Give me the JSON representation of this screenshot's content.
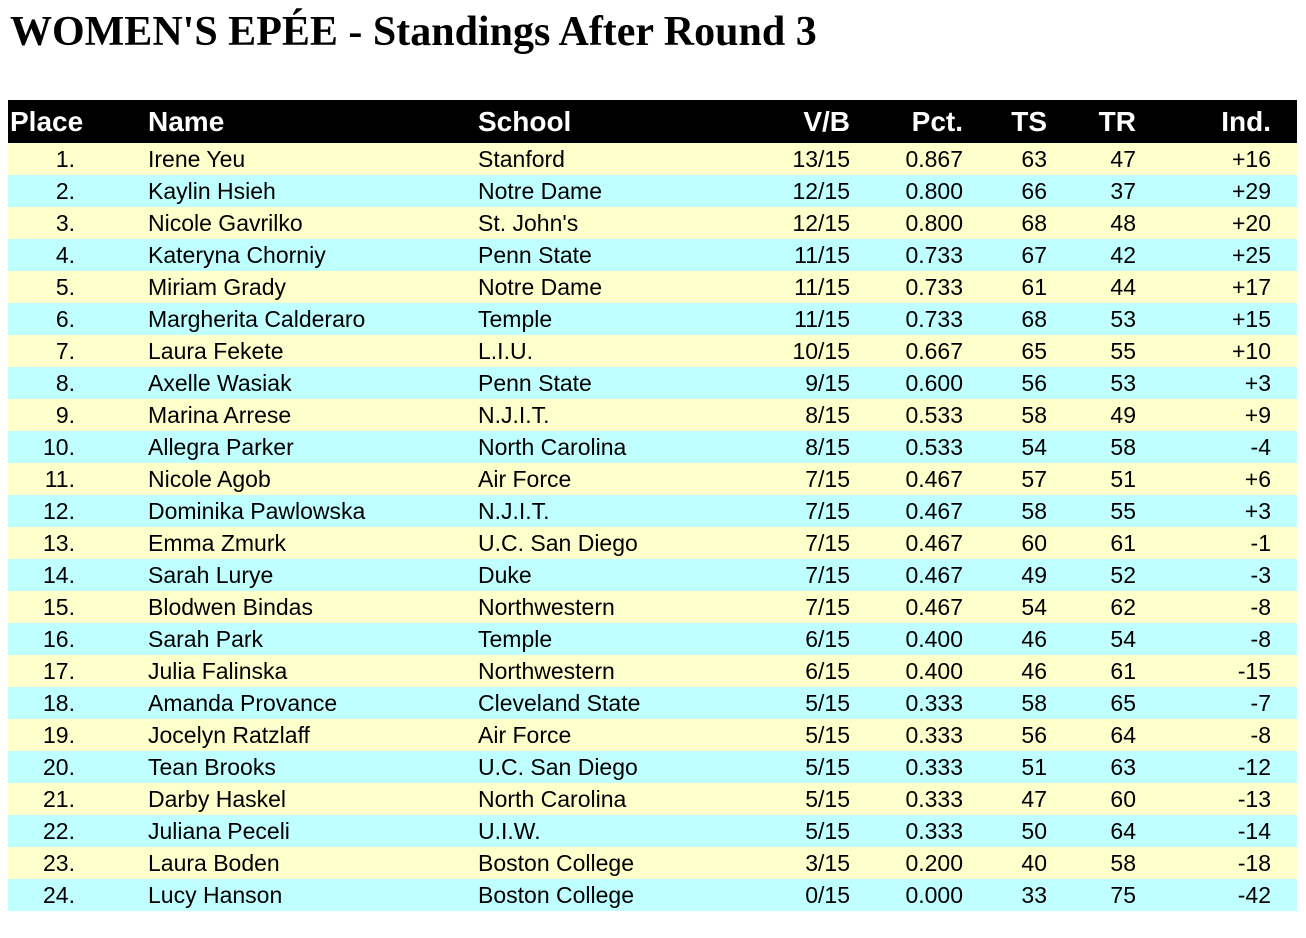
{
  "title": "WOMEN'S EPÉE - Standings After Round 3",
  "colors": {
    "page_bg": "#FFFFFF",
    "header_bg": "#000000",
    "header_text": "#FFFFFF",
    "row_odd": "#FFFFCC",
    "row_even": "#BFFFFF"
  },
  "table": {
    "columns": [
      {
        "key": "place",
        "label": "Place"
      },
      {
        "key": "name",
        "label": "Name"
      },
      {
        "key": "school",
        "label": "School"
      },
      {
        "key": "vb",
        "label": "V/B"
      },
      {
        "key": "pct",
        "label": "Pct."
      },
      {
        "key": "ts",
        "label": "TS"
      },
      {
        "key": "tr",
        "label": "TR"
      },
      {
        "key": "ind",
        "label": "Ind."
      }
    ],
    "rows": [
      {
        "place": "1.",
        "name": "Irene Yeu",
        "school": "Stanford",
        "vb": "13/15",
        "pct": "0.867",
        "ts": "63",
        "tr": "47",
        "ind": "+16"
      },
      {
        "place": "2.",
        "name": "Kaylin Hsieh",
        "school": "Notre Dame",
        "vb": "12/15",
        "pct": "0.800",
        "ts": "66",
        "tr": "37",
        "ind": "+29"
      },
      {
        "place": "3.",
        "name": "Nicole Gavrilko",
        "school": "St. John's",
        "vb": "12/15",
        "pct": "0.800",
        "ts": "68",
        "tr": "48",
        "ind": "+20"
      },
      {
        "place": "4.",
        "name": "Kateryna Chorniy",
        "school": "Penn State",
        "vb": "11/15",
        "pct": "0.733",
        "ts": "67",
        "tr": "42",
        "ind": "+25"
      },
      {
        "place": "5.",
        "name": "Miriam Grady",
        "school": "Notre Dame",
        "vb": "11/15",
        "pct": "0.733",
        "ts": "61",
        "tr": "44",
        "ind": "+17"
      },
      {
        "place": "6.",
        "name": "Margherita Calderaro",
        "school": "Temple",
        "vb": "11/15",
        "pct": "0.733",
        "ts": "68",
        "tr": "53",
        "ind": "+15"
      },
      {
        "place": "7.",
        "name": "Laura Fekete",
        "school": "L.I.U.",
        "vb": "10/15",
        "pct": "0.667",
        "ts": "65",
        "tr": "55",
        "ind": "+10"
      },
      {
        "place": "8.",
        "name": "Axelle Wasiak",
        "school": "Penn State",
        "vb": "9/15",
        "pct": "0.600",
        "ts": "56",
        "tr": "53",
        "ind": "+3"
      },
      {
        "place": "9.",
        "name": "Marina Arrese",
        "school": "N.J.I.T.",
        "vb": "8/15",
        "pct": "0.533",
        "ts": "58",
        "tr": "49",
        "ind": "+9"
      },
      {
        "place": "10.",
        "name": "Allegra Parker",
        "school": "North Carolina",
        "vb": "8/15",
        "pct": "0.533",
        "ts": "54",
        "tr": "58",
        "ind": "-4"
      },
      {
        "place": "11.",
        "name": "Nicole Agob",
        "school": "Air Force",
        "vb": "7/15",
        "pct": "0.467",
        "ts": "57",
        "tr": "51",
        "ind": "+6"
      },
      {
        "place": "12.",
        "name": "Dominika Pawlowska",
        "school": "N.J.I.T.",
        "vb": "7/15",
        "pct": "0.467",
        "ts": "58",
        "tr": "55",
        "ind": "+3"
      },
      {
        "place": "13.",
        "name": "Emma Zmurk",
        "school": "U.C. San Diego",
        "vb": "7/15",
        "pct": "0.467",
        "ts": "60",
        "tr": "61",
        "ind": "-1"
      },
      {
        "place": "14.",
        "name": "Sarah Lurye",
        "school": "Duke",
        "vb": "7/15",
        "pct": "0.467",
        "ts": "49",
        "tr": "52",
        "ind": "-3"
      },
      {
        "place": "15.",
        "name": "Blodwen Bindas",
        "school": "Northwestern",
        "vb": "7/15",
        "pct": "0.467",
        "ts": "54",
        "tr": "62",
        "ind": "-8"
      },
      {
        "place": "16.",
        "name": "Sarah Park",
        "school": "Temple",
        "vb": "6/15",
        "pct": "0.400",
        "ts": "46",
        "tr": "54",
        "ind": "-8"
      },
      {
        "place": "17.",
        "name": "Julia Falinska",
        "school": "Northwestern",
        "vb": "6/15",
        "pct": "0.400",
        "ts": "46",
        "tr": "61",
        "ind": "-15"
      },
      {
        "place": "18.",
        "name": "Amanda Provance",
        "school": "Cleveland State",
        "vb": "5/15",
        "pct": "0.333",
        "ts": "58",
        "tr": "65",
        "ind": "-7"
      },
      {
        "place": "19.",
        "name": "Jocelyn Ratzlaff",
        "school": "Air Force",
        "vb": "5/15",
        "pct": "0.333",
        "ts": "56",
        "tr": "64",
        "ind": "-8"
      },
      {
        "place": "20.",
        "name": "Tean Brooks",
        "school": "U.C. San Diego",
        "vb": "5/15",
        "pct": "0.333",
        "ts": "51",
        "tr": "63",
        "ind": "-12"
      },
      {
        "place": "21.",
        "name": "Darby Haskel",
        "school": "North Carolina",
        "vb": "5/15",
        "pct": "0.333",
        "ts": "47",
        "tr": "60",
        "ind": "-13"
      },
      {
        "place": "22.",
        "name": "Juliana Peceli",
        "school": "U.I.W.",
        "vb": "5/15",
        "pct": "0.333",
        "ts": "50",
        "tr": "64",
        "ind": "-14"
      },
      {
        "place": "23.",
        "name": "Laura Boden",
        "school": "Boston College",
        "vb": "3/15",
        "pct": "0.200",
        "ts": "40",
        "tr": "58",
        "ind": "-18"
      },
      {
        "place": "24.",
        "name": "Lucy Hanson",
        "school": "Boston College",
        "vb": "0/15",
        "pct": "0.000",
        "ts": "33",
        "tr": "75",
        "ind": "-42"
      }
    ]
  }
}
